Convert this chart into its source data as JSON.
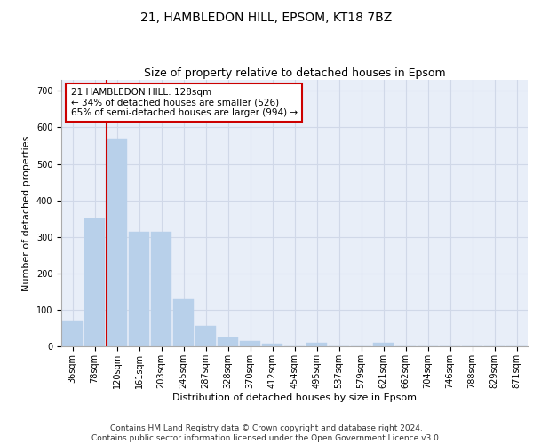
{
  "title1": "21, HAMBLEDON HILL, EPSOM, KT18 7BZ",
  "title2": "Size of property relative to detached houses in Epsom",
  "xlabel": "Distribution of detached houses by size in Epsom",
  "ylabel": "Number of detached properties",
  "categories": [
    "36sqm",
    "78sqm",
    "120sqm",
    "161sqm",
    "203sqm",
    "245sqm",
    "287sqm",
    "328sqm",
    "370sqm",
    "412sqm",
    "454sqm",
    "495sqm",
    "537sqm",
    "579sqm",
    "621sqm",
    "662sqm",
    "704sqm",
    "746sqm",
    "788sqm",
    "829sqm",
    "871sqm"
  ],
  "values": [
    70,
    350,
    570,
    315,
    315,
    130,
    57,
    25,
    15,
    8,
    0,
    10,
    0,
    0,
    10,
    0,
    0,
    0,
    0,
    0,
    0
  ],
  "bar_color": "#b8d0ea",
  "bar_edgecolor": "#b8d0ea",
  "vline_color": "#cc0000",
  "vline_x_index": 2,
  "annotation_text": "21 HAMBLEDON HILL: 128sqm\n← 34% of detached houses are smaller (526)\n65% of semi-detached houses are larger (994) →",
  "annotation_box_edgecolor": "#cc0000",
  "annotation_box_facecolor": "#ffffff",
  "ylim": [
    0,
    730
  ],
  "yticks": [
    0,
    100,
    200,
    300,
    400,
    500,
    600,
    700
  ],
  "grid_color": "#d0d8e8",
  "background_color": "#e8eef8",
  "footer": "Contains HM Land Registry data © Crown copyright and database right 2024.\nContains public sector information licensed under the Open Government Licence v3.0.",
  "title_fontsize": 10,
  "subtitle_fontsize": 9,
  "xlabel_fontsize": 8,
  "ylabel_fontsize": 8,
  "tick_fontsize": 7,
  "annotation_fontsize": 7.5,
  "footer_fontsize": 6.5
}
